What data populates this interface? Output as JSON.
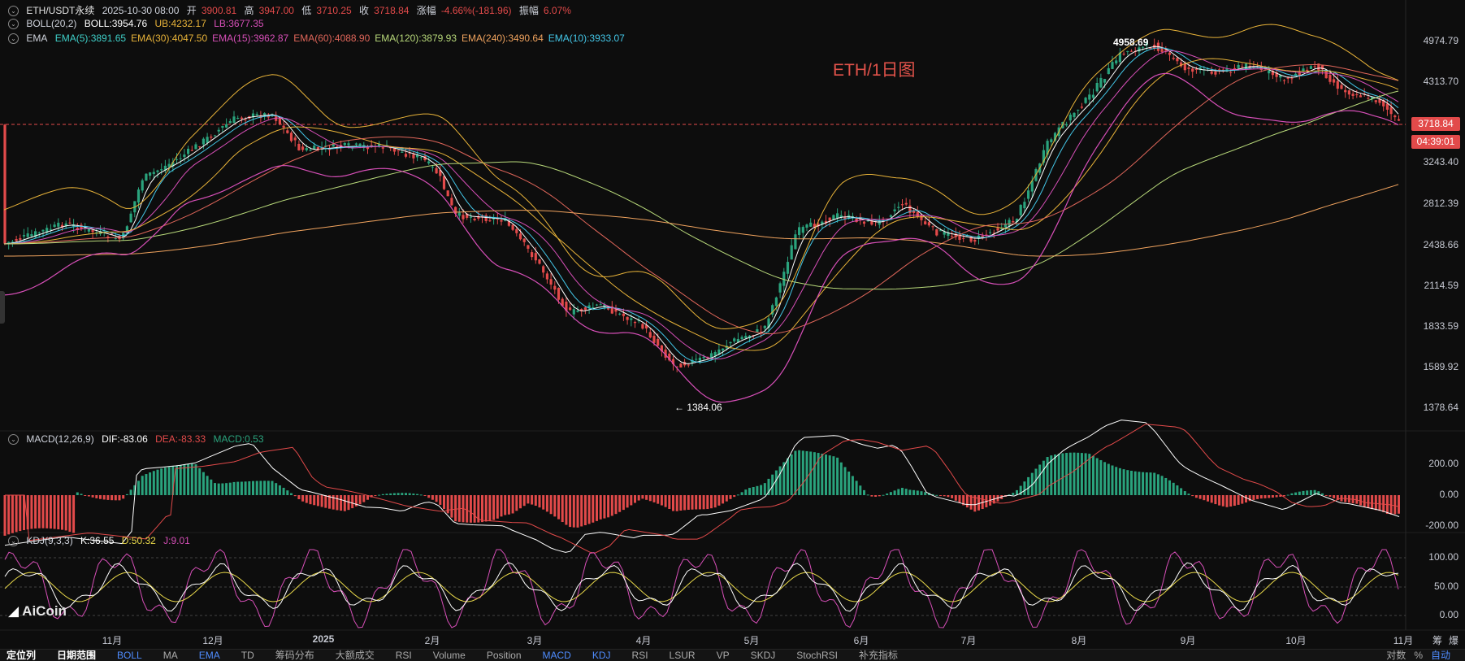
{
  "header": {
    "symbol": "ETH/USDT永续",
    "datetime": "2025-10-30 08:00",
    "open_label": "开",
    "open": "3900.81",
    "high_label": "高",
    "high": "3947.00",
    "low_label": "低",
    "low": "3710.25",
    "close_label": "收",
    "close": "3718.84",
    "change_label": "涨幅",
    "change": "-4.66%(-181.96)",
    "amplitude_label": "振幅",
    "amplitude": "6.07%"
  },
  "boll": {
    "name": "BOLL(20,2)",
    "mid": "BOLL:3954.76",
    "ub": "UB:4232.17",
    "lb": "LB:3677.35"
  },
  "ema": {
    "name": "EMA",
    "items": [
      {
        "text": "EMA(5):3891.65",
        "color": "#3fd0c9"
      },
      {
        "text": "EMA(30):4047.50",
        "color": "#e8b339"
      },
      {
        "text": "EMA(15):3962.87",
        "color": "#d74fb8"
      },
      {
        "text": "EMA(60):4088.90",
        "color": "#e0665a"
      },
      {
        "text": "EMA(120):3879.93",
        "color": "#b8d97a"
      },
      {
        "text": "EMA(240):3490.64",
        "color": "#f0a35e"
      },
      {
        "text": "EMA(10):3933.07",
        "color": "#44c7e8"
      }
    ]
  },
  "chart_title": "ETH/1日图",
  "annotations": {
    "high_marker": "4958.69",
    "low_marker": "← 1384.06"
  },
  "price_axis": [
    "4974.79",
    "4313.70",
    "3718.84",
    "3243.40",
    "2812.39",
    "2438.66",
    "2114.59",
    "1833.59",
    "1589.92",
    "1378.64"
  ],
  "current_price_tag": "3718.84",
  "countdown_tag": "04:39:01",
  "macd": {
    "name": "MACD(12,26,9)",
    "dif": "DIF:-83.06",
    "dea": "DEA:-83.33",
    "macd": "MACD:0.53",
    "axis": [
      "200.00",
      "0.00",
      "-200.00"
    ]
  },
  "kdj": {
    "name": "KDJ(9,3,3)",
    "k": "K:36.55",
    "d": "D:50.32",
    "j": "J:9.01",
    "axis": [
      "100.00",
      "50.00",
      "0.00"
    ]
  },
  "x_axis": [
    "11月",
    "12月",
    "2025",
    "2月",
    "3月",
    "4月",
    "5月",
    "6月",
    "7月",
    "8月",
    "9月",
    "10月",
    "11月"
  ],
  "logo": "AiCoin",
  "right_small": [
    "筹",
    "爆"
  ],
  "bottom_bar": {
    "items": [
      {
        "text": "定位列",
        "style": "strong"
      },
      {
        "text": "日期范围",
        "style": "strong"
      },
      {
        "text": "BOLL",
        "style": "active"
      },
      {
        "text": "MA",
        "style": ""
      },
      {
        "text": "EMA",
        "style": "active"
      },
      {
        "text": "TD",
        "style": ""
      },
      {
        "text": "筹码分布",
        "style": ""
      },
      {
        "text": "大额成交",
        "style": ""
      },
      {
        "text": "RSI",
        "style": ""
      },
      {
        "text": "Volume",
        "style": ""
      },
      {
        "text": "Position",
        "style": ""
      },
      {
        "text": "MACD",
        "style": "active"
      },
      {
        "text": "KDJ",
        "style": "active"
      },
      {
        "text": "RSI",
        "style": ""
      },
      {
        "text": "LSUR",
        "style": ""
      },
      {
        "text": "VP",
        "style": ""
      },
      {
        "text": "SKDJ",
        "style": ""
      },
      {
        "text": "StochRSI",
        "style": ""
      },
      {
        "text": "补充指标",
        "style": ""
      }
    ],
    "right": [
      "对数",
      "%",
      "自动"
    ]
  },
  "colors": {
    "up": "#2aa37d",
    "down": "#e24a4a",
    "bg": "#0d0d0d",
    "accent": "#4f8cff",
    "title": "#e0524a"
  }
}
